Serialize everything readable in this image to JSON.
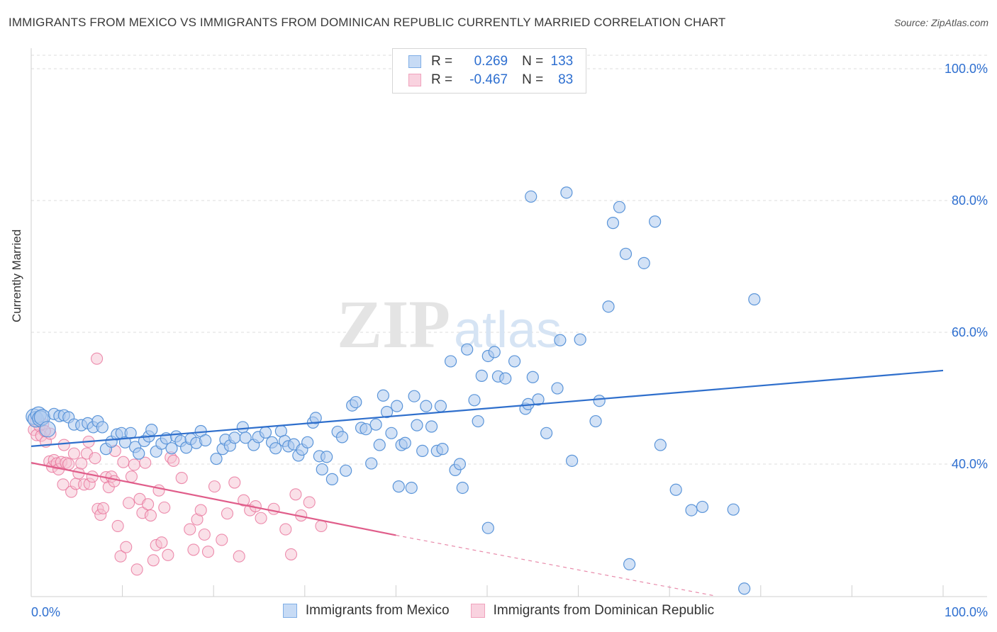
{
  "title": "IMMIGRANTS FROM MEXICO VS IMMIGRANTS FROM DOMINICAN REPUBLIC CURRENTLY MARRIED CORRELATION CHART",
  "source": "Source: ZipAtlas.com",
  "watermark": {
    "zip": "ZIP",
    "atlas": "atlas"
  },
  "legend_top": {
    "rows": [
      {
        "r_label": "R =",
        "r_value": "0.269",
        "n_label": "N =",
        "n_value": "133",
        "color": "#7faee6"
      },
      {
        "r_label": "R =",
        "r_value": "-0.467",
        "n_label": "N =",
        "n_value": "83",
        "color": "#f0a3bd"
      }
    ]
  },
  "colors": {
    "blue": "#5b95d9",
    "blue_fill": "#aecbef",
    "pink": "#e8729a",
    "pink_fill": "#f6c1d2",
    "axis_text": "#2e6fd0"
  },
  "chart_data": {
    "type": "scatter",
    "title": "IMMIGRANTS FROM MEXICO VS IMMIGRANTS FROM DOMINICAN REPUBLIC CURRENTLY MARRIED CORRELATION CHART",
    "xlabel": "",
    "ylabel": "Currently Married",
    "xlim": [
      0,
      100
    ],
    "ylim": [
      20,
      102
    ],
    "x_tick_labels": [
      "0.0%",
      "100.0%"
    ],
    "y_tick_labels": [
      {
        "value": 40,
        "label": "40.0%"
      },
      {
        "value": 60,
        "label": "60.0%"
      },
      {
        "value": 80,
        "label": "80.0%"
      },
      {
        "value": 100,
        "label": "100.0%"
      }
    ],
    "grid": true,
    "series": [
      {
        "name": "Immigrants from Mexico",
        "color": "#5b95d9",
        "trend": {
          "x": [
            0,
            100
          ],
          "y": [
            42.7,
            54.2
          ],
          "dashed_to": null
        },
        "points": [
          [
            0.3,
            47.2
          ],
          [
            0.5,
            46.8
          ],
          [
            0.8,
            47.5
          ],
          [
            1.0,
            46.9
          ],
          [
            1.2,
            47.1
          ],
          [
            1.8,
            45.3
          ],
          [
            2.5,
            47.6
          ],
          [
            3.1,
            47.3
          ],
          [
            3.6,
            47.4
          ],
          [
            4.1,
            47.1
          ],
          [
            4.7,
            46.0
          ],
          [
            5.5,
            45.9
          ],
          [
            6.2,
            46.2
          ],
          [
            6.8,
            45.6
          ],
          [
            7.3,
            46.5
          ],
          [
            7.8,
            45.6
          ],
          [
            8.2,
            42.3
          ],
          [
            8.8,
            43.4
          ],
          [
            9.4,
            44.5
          ],
          [
            9.9,
            44.7
          ],
          [
            10.3,
            43.3
          ],
          [
            10.9,
            44.7
          ],
          [
            11.4,
            42.6
          ],
          [
            11.8,
            41.6
          ],
          [
            12.4,
            43.5
          ],
          [
            12.9,
            44.2
          ],
          [
            13.2,
            45.2
          ],
          [
            13.7,
            41.9
          ],
          [
            14.3,
            43.1
          ],
          [
            14.8,
            43.9
          ],
          [
            15.4,
            42.4
          ],
          [
            15.9,
            44.2
          ],
          [
            16.4,
            43.5
          ],
          [
            17.0,
            42.5
          ],
          [
            17.5,
            43.8
          ],
          [
            18.1,
            43.2
          ],
          [
            18.6,
            45.0
          ],
          [
            19.1,
            43.6
          ],
          [
            20.3,
            40.8
          ],
          [
            21.0,
            42.3
          ],
          [
            21.3,
            43.7
          ],
          [
            21.8,
            42.8
          ],
          [
            22.3,
            44.0
          ],
          [
            23.2,
            45.6
          ],
          [
            23.5,
            44.0
          ],
          [
            24.4,
            42.9
          ],
          [
            24.9,
            44.1
          ],
          [
            25.7,
            44.8
          ],
          [
            26.4,
            43.3
          ],
          [
            26.8,
            42.4
          ],
          [
            27.4,
            45.0
          ],
          [
            27.8,
            43.5
          ],
          [
            28.2,
            42.7
          ],
          [
            28.8,
            43.0
          ],
          [
            29.3,
            41.3
          ],
          [
            29.7,
            42.2
          ],
          [
            30.3,
            43.3
          ],
          [
            30.9,
            46.3
          ],
          [
            31.2,
            47.0
          ],
          [
            31.6,
            41.2
          ],
          [
            31.9,
            39.2
          ],
          [
            32.4,
            41.1
          ],
          [
            33.0,
            37.7
          ],
          [
            33.6,
            44.9
          ],
          [
            34.1,
            44.1
          ],
          [
            34.5,
            39.0
          ],
          [
            35.2,
            48.9
          ],
          [
            35.6,
            49.4
          ],
          [
            36.2,
            45.5
          ],
          [
            36.7,
            45.3
          ],
          [
            37.3,
            40.1
          ],
          [
            37.8,
            46.0
          ],
          [
            38.2,
            42.9
          ],
          [
            38.6,
            50.4
          ],
          [
            39.0,
            47.9
          ],
          [
            39.5,
            44.7
          ],
          [
            40.1,
            48.8
          ],
          [
            40.6,
            42.9
          ],
          [
            41.0,
            43.2
          ],
          [
            41.7,
            36.4
          ],
          [
            42.3,
            45.9
          ],
          [
            42.9,
            42.0
          ],
          [
            43.3,
            48.8
          ],
          [
            43.9,
            45.7
          ],
          [
            44.5,
            42.0
          ],
          [
            44.9,
            48.8
          ],
          [
            45.1,
            42.3
          ],
          [
            46.0,
            55.6
          ],
          [
            46.5,
            39.1
          ],
          [
            47.0,
            40.0
          ],
          [
            47.3,
            36.4
          ],
          [
            47.8,
            57.4
          ],
          [
            48.6,
            49.7
          ],
          [
            49.0,
            46.5
          ],
          [
            49.4,
            53.4
          ],
          [
            50.1,
            56.4
          ],
          [
            50.8,
            57.0
          ],
          [
            51.2,
            53.3
          ],
          [
            52.0,
            53.0
          ],
          [
            53.0,
            55.6
          ],
          [
            54.2,
            48.4
          ],
          [
            54.5,
            49.1
          ],
          [
            55.0,
            53.2
          ],
          [
            55.6,
            49.8
          ],
          [
            56.5,
            44.7
          ],
          [
            57.7,
            51.5
          ],
          [
            58.0,
            58.8
          ],
          [
            59.3,
            40.5
          ],
          [
            60.2,
            58.9
          ],
          [
            61.9,
            46.5
          ],
          [
            62.3,
            49.6
          ],
          [
            63.3,
            63.9
          ],
          [
            63.8,
            76.6
          ],
          [
            64.5,
            79.0
          ],
          [
            65.2,
            71.9
          ],
          [
            65.6,
            24.8
          ],
          [
            67.2,
            70.5
          ],
          [
            68.4,
            76.8
          ],
          [
            69.0,
            42.9
          ],
          [
            70.7,
            36.1
          ],
          [
            72.4,
            33.0
          ],
          [
            73.6,
            33.5
          ],
          [
            77.0,
            33.1
          ],
          [
            78.2,
            21.1
          ],
          [
            79.3,
            65.0
          ],
          [
            54.8,
            80.6
          ],
          [
            58.7,
            81.2
          ],
          [
            50.1,
            30.3
          ],
          [
            42.0,
            50.3
          ],
          [
            40.3,
            36.6
          ]
        ]
      },
      {
        "name": "Immigrants from Dominican Republic",
        "color": "#e8729a",
        "trend": {
          "x": [
            0,
            40
          ],
          "y": [
            40.2,
            29.2
          ],
          "dashed_to": [
            75,
            20
          ]
        },
        "points": [
          [
            0.3,
            45.2
          ],
          [
            0.6,
            44.4
          ],
          [
            0.9,
            45.8
          ],
          [
            1.1,
            44.3
          ],
          [
            1.3,
            46.1
          ],
          [
            1.6,
            43.4
          ],
          [
            2.0,
            40.4
          ],
          [
            2.3,
            39.6
          ],
          [
            2.5,
            40.6
          ],
          [
            2.8,
            40.1
          ],
          [
            3.0,
            39.2
          ],
          [
            3.3,
            40.3
          ],
          [
            3.5,
            36.9
          ],
          [
            3.8,
            40.2
          ],
          [
            4.1,
            40.0
          ],
          [
            4.4,
            35.8
          ],
          [
            4.7,
            41.6
          ],
          [
            4.9,
            37.0
          ],
          [
            5.2,
            38.6
          ],
          [
            5.5,
            40.1
          ],
          [
            5.8,
            36.9
          ],
          [
            6.1,
            41.6
          ],
          [
            6.4,
            37.0
          ],
          [
            6.7,
            38.1
          ],
          [
            7.0,
            40.9
          ],
          [
            7.3,
            33.2
          ],
          [
            7.6,
            32.3
          ],
          [
            7.9,
            33.3
          ],
          [
            8.2,
            38.0
          ],
          [
            8.5,
            36.5
          ],
          [
            8.8,
            38.1
          ],
          [
            9.1,
            37.4
          ],
          [
            9.5,
            30.6
          ],
          [
            9.8,
            26.0
          ],
          [
            10.1,
            40.3
          ],
          [
            10.4,
            27.4
          ],
          [
            10.7,
            34.1
          ],
          [
            11.0,
            38.1
          ],
          [
            11.3,
            39.9
          ],
          [
            11.6,
            24.0
          ],
          [
            11.9,
            34.7
          ],
          [
            12.2,
            32.6
          ],
          [
            12.5,
            40.2
          ],
          [
            12.8,
            33.9
          ],
          [
            13.1,
            32.2
          ],
          [
            13.4,
            25.4
          ],
          [
            13.7,
            27.7
          ],
          [
            14.0,
            36.0
          ],
          [
            14.3,
            28.1
          ],
          [
            14.6,
            33.4
          ],
          [
            15.0,
            26.2
          ],
          [
            15.3,
            41.0
          ],
          [
            15.6,
            40.5
          ],
          [
            16.5,
            37.9
          ],
          [
            17.4,
            30.1
          ],
          [
            17.8,
            27.0
          ],
          [
            18.2,
            31.6
          ],
          [
            18.6,
            33.0
          ],
          [
            19.0,
            29.3
          ],
          [
            19.4,
            26.7
          ],
          [
            20.1,
            36.6
          ],
          [
            20.9,
            28.5
          ],
          [
            21.5,
            32.5
          ],
          [
            22.3,
            37.2
          ],
          [
            22.8,
            26.0
          ],
          [
            23.3,
            34.5
          ],
          [
            24.0,
            33.0
          ],
          [
            24.6,
            33.6
          ],
          [
            25.2,
            31.8
          ],
          [
            26.6,
            33.2
          ],
          [
            27.9,
            30.1
          ],
          [
            28.5,
            26.3
          ],
          [
            29.0,
            35.4
          ],
          [
            29.6,
            32.2
          ],
          [
            30.5,
            34.2
          ],
          [
            31.8,
            30.6
          ],
          [
            7.2,
            56.0
          ],
          [
            2.1,
            44.6
          ],
          [
            0.5,
            46.5
          ],
          [
            1.5,
            45.0
          ],
          [
            3.6,
            42.9
          ],
          [
            6.3,
            43.4
          ],
          [
            9.2,
            42.0
          ]
        ]
      }
    ]
  },
  "bottom_legend": [
    {
      "label": "Immigrants from Mexico",
      "color": "#7faee6"
    },
    {
      "label": "Immigrants from Dominican Republic",
      "color": "#f0a3bd"
    }
  ]
}
